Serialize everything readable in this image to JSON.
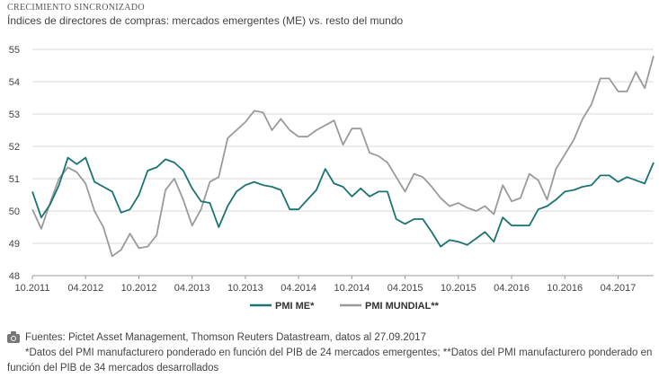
{
  "header": {
    "kicker": "CRECIMIENTO SINCRONIZADO",
    "title": "Índices de directores de compras: mercados emergentes (ME) vs. resto del mundo"
  },
  "footer": {
    "source": "Fuentes: Pictet Asset Management, Thomson Reuters Datastream, datos al 27.09.2017",
    "note_line1": "*Datos del PMI manufacturero ponderado en función del PIB de 24 mercados emergentes; **Datos del PMI manufacturero ponderado en",
    "note_line2": "función del PIB de 34 mercados desarrollados"
  },
  "chart_data": {
    "type": "line",
    "title": "Índices de directores de compras: mercados emergentes (ME) vs. resto del mundo",
    "x_tick_labels": [
      "10.2011",
      "04.2012",
      "10.2012",
      "04.2013",
      "10.2013",
      "04.2014",
      "10.2014",
      "04.2015",
      "10.2015",
      "04.2016",
      "10.2016",
      "04.2017"
    ],
    "y_ticks": [
      48,
      49,
      50,
      51,
      52,
      53,
      54,
      55
    ],
    "ylim": [
      48,
      55
    ],
    "grid": "horizontal",
    "legend_position": "bottom",
    "series": [
      {
        "name": "PMI ME*",
        "color": "#1b7373",
        "values": [
          50.6,
          49.8,
          50.2,
          50.8,
          51.65,
          51.45,
          51.65,
          50.9,
          50.75,
          50.6,
          49.95,
          50.05,
          50.5,
          51.25,
          51.35,
          51.6,
          51.5,
          51.25,
          50.7,
          50.3,
          50.25,
          49.5,
          50.15,
          50.6,
          50.8,
          50.9,
          50.8,
          50.75,
          50.65,
          50.05,
          50.05,
          50.35,
          50.65,
          51.3,
          50.85,
          50.75,
          50.45,
          50.7,
          50.45,
          50.6,
          50.6,
          49.75,
          49.6,
          49.75,
          49.75,
          49.35,
          48.9,
          49.1,
          49.05,
          48.95,
          49.15,
          49.35,
          49.05,
          49.8,
          49.55,
          49.55,
          49.55,
          50.05,
          50.15,
          50.35,
          50.6,
          50.65,
          50.75,
          50.8,
          51.1,
          51.1,
          50.9,
          51.05,
          50.95,
          50.85,
          51.5
        ]
      },
      {
        "name": "PMI MUNDIAL**",
        "color": "#9a9a9a",
        "values": [
          50.05,
          49.45,
          50.25,
          51.0,
          51.35,
          51.2,
          50.85,
          50.0,
          49.5,
          48.6,
          48.8,
          49.3,
          48.85,
          48.9,
          49.25,
          50.65,
          51.0,
          50.35,
          49.55,
          50.05,
          50.9,
          51.05,
          52.25,
          52.5,
          52.75,
          53.1,
          53.05,
          52.5,
          52.85,
          52.5,
          52.3,
          52.3,
          52.5,
          52.65,
          52.8,
          52.05,
          52.55,
          52.55,
          51.8,
          51.7,
          51.5,
          51.05,
          50.6,
          51.15,
          51.05,
          50.75,
          50.4,
          50.15,
          50.25,
          50.1,
          50.0,
          50.15,
          49.9,
          50.8,
          50.3,
          50.4,
          51.15,
          50.95,
          50.35,
          51.3,
          51.75,
          52.2,
          52.85,
          53.3,
          54.1,
          54.1,
          53.7,
          53.7,
          54.3,
          53.8,
          54.8
        ]
      }
    ]
  }
}
